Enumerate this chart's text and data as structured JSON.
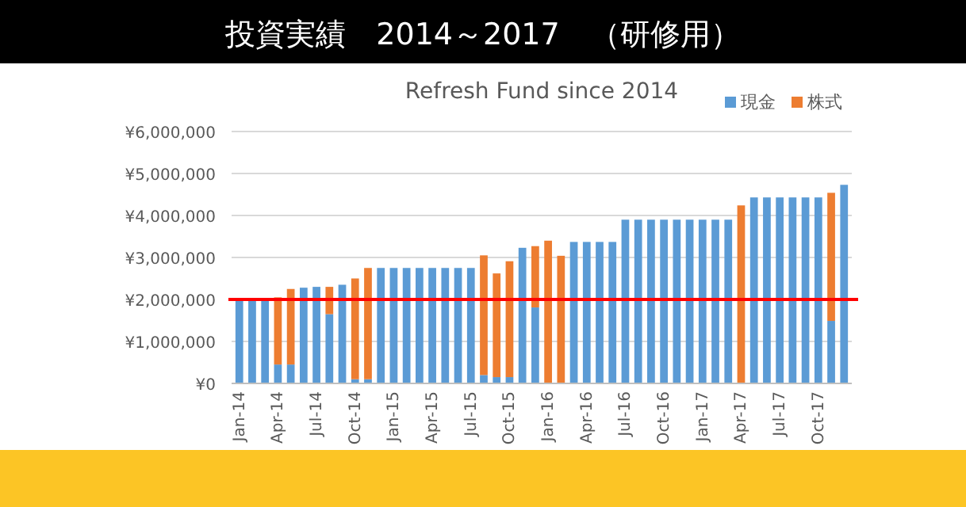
{
  "chart_data": {
    "type": "bar",
    "stacked": true,
    "title": "投資実績　2014～2017　（研修用）",
    "subtitle": "Refresh Fund since 2014",
    "categories": [
      "Jan-14",
      null,
      null,
      "Apr-14",
      null,
      null,
      "Jul-14",
      null,
      null,
      "Oct-14",
      null,
      null,
      "Jan-15",
      null,
      null,
      "Apr-15",
      null,
      null,
      "Jul-15",
      null,
      null,
      "Oct-15",
      null,
      null,
      "Jan-16",
      null,
      null,
      "Apr-16",
      null,
      null,
      "Jul-16",
      null,
      null,
      "Oct-16",
      null,
      null,
      "Jan-17",
      null,
      null,
      "Apr-17",
      null,
      null,
      "Jul-17",
      null,
      null,
      "Oct-17",
      null,
      null
    ],
    "series": [
      {
        "name": "現金",
        "color": "#5b9bd5",
        "values": [
          2000000,
          2000000,
          2000000,
          450000,
          450000,
          2280000,
          2300000,
          1650000,
          2350000,
          100000,
          100000,
          2750000,
          2750000,
          2750000,
          2750000,
          2750000,
          2750000,
          2750000,
          2750000,
          200000,
          150000,
          150000,
          3230000,
          1810000,
          0,
          0,
          3370000,
          3370000,
          3370000,
          3370000,
          3900000,
          3900000,
          3900000,
          3900000,
          3900000,
          3900000,
          3900000,
          3900000,
          3900000,
          0,
          4430000,
          4430000,
          4430000,
          4430000,
          4430000,
          4430000,
          1490000,
          4730000
        ]
      },
      {
        "name": "株式",
        "color": "#ed7d31",
        "values": [
          0,
          0,
          0,
          1600000,
          1800000,
          0,
          0,
          650000,
          0,
          2400000,
          2650000,
          0,
          0,
          0,
          0,
          0,
          0,
          0,
          0,
          2850000,
          2470000,
          2760000,
          0,
          1460000,
          3400000,
          3040000,
          0,
          0,
          0,
          0,
          0,
          0,
          0,
          0,
          0,
          0,
          0,
          0,
          0,
          4240000,
          0,
          0,
          0,
          0,
          0,
          0,
          3050000,
          0
        ]
      }
    ],
    "ylim": [
      0,
      6000000
    ],
    "yticks": [
      {
        "value": 0,
        "label": "¥0"
      },
      {
        "value": 1000000,
        "label": "¥1,000,000"
      },
      {
        "value": 2000000,
        "label": "¥2,000,000"
      },
      {
        "value": 3000000,
        "label": "¥3,000,000"
      },
      {
        "value": 4000000,
        "label": "¥4,000,000"
      },
      {
        "value": 5000000,
        "label": "¥5,000,000"
      },
      {
        "value": 6000000,
        "label": "¥6,000,000"
      }
    ],
    "grid": "y",
    "legend": "top right",
    "ref_lines": [
      {
        "axis": "y",
        "value": 2000000,
        "color": "#ff0000"
      }
    ]
  }
}
